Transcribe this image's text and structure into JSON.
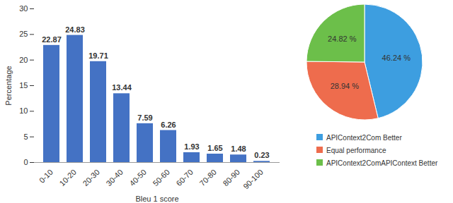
{
  "chart_data": [
    {
      "type": "bar",
      "categories": [
        "0-10",
        "10-20",
        "20-30",
        "30-40",
        "40-50",
        "50-60",
        "60-70",
        "70-80",
        "80-90",
        "90-100"
      ],
      "values": [
        22.87,
        24.83,
        19.71,
        13.44,
        7.59,
        6.26,
        1.93,
        1.65,
        1.48,
        0.23
      ],
      "color": "#4472c4",
      "x_label": "Bleu 1 score",
      "y_label": "Percentage",
      "ylim": [
        0,
        30
      ],
      "yticks": [
        0,
        5,
        10,
        15,
        20,
        25,
        30
      ],
      "data_labels": true
    },
    {
      "type": "pie",
      "categories": [
        "APIContext2Com Better",
        "Equal performance",
        "APIContext2ComAPIContext Better"
      ],
      "values": [
        46.24,
        28.94,
        24.82
      ],
      "value_labels": [
        "46.24 %",
        "28.94 %",
        "24.82 %"
      ],
      "colors": [
        "#3d9ee0",
        "#ee6c4d",
        "#6cbf4a"
      ],
      "data_labels": true,
      "legend": "bottom"
    }
  ]
}
